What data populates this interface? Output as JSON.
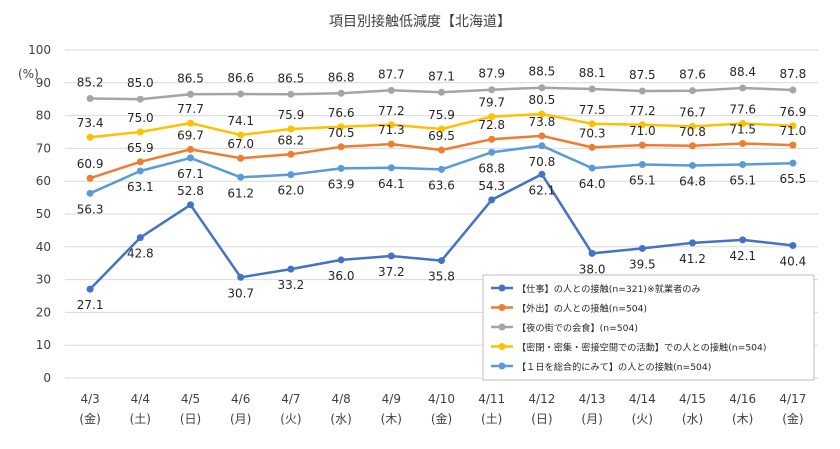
{
  "chart_data": {
    "type": "line",
    "title": "項目別接触低減度【北海道】",
    "ylabel": "(%)",
    "ylim": [
      0,
      100
    ],
    "yticks": [
      0,
      10,
      20,
      30,
      40,
      50,
      60,
      70,
      80,
      90,
      100
    ],
    "grid": true,
    "legend_position": "bottom-right",
    "categories": [
      "4/3",
      "4/4",
      "4/5",
      "4/6",
      "4/7",
      "4/8",
      "4/9",
      "4/10",
      "4/11",
      "4/12",
      "4/13",
      "4/14",
      "4/15",
      "4/16",
      "4/17"
    ],
    "weekdays": [
      "(金)",
      "(土)",
      "(日)",
      "(月)",
      "(火)",
      "(水)",
      "(木)",
      "(金)",
      "(土)",
      "(日)",
      "(月)",
      "(火)",
      "(水)",
      "(木)",
      "(金)"
    ],
    "series": [
      {
        "name": "【仕事】の人との接触(n=321)※就業者のみ",
        "color": "#4472c4",
        "values": [
          27.1,
          42.8,
          52.8,
          30.7,
          33.2,
          36.0,
          37.2,
          35.8,
          54.3,
          62.1,
          38.0,
          39.5,
          41.2,
          42.1,
          40.4
        ],
        "labels": [
          "27.1",
          "42.8",
          "52.8",
          "30.7",
          "33.2",
          "36.0",
          "37.2",
          "35.8",
          "54.3",
          "62.1",
          "38.0",
          "39.5",
          "41.2",
          "42.1",
          "40.4"
        ]
      },
      {
        "name": "【外出】の人との接触(n=504)",
        "color": "#ed7d31",
        "values": [
          60.9,
          65.9,
          69.7,
          67.0,
          68.2,
          70.5,
          71.3,
          69.5,
          72.8,
          73.8,
          70.3,
          71.0,
          70.8,
          71.5,
          71.0
        ],
        "labels": [
          "60.9",
          "65.9",
          "69.7",
          "67.0",
          "68.2",
          "70.5",
          "71.3",
          "69.5",
          "72.8",
          "73.8",
          "70.3",
          "71.0",
          "70.8",
          "71.5",
          "71.0"
        ]
      },
      {
        "name": "【夜の街での会食】(n=504)",
        "color": "#a5a5a5",
        "values": [
          85.2,
          85.0,
          86.5,
          86.6,
          86.5,
          86.8,
          87.7,
          87.1,
          87.9,
          88.5,
          88.1,
          87.5,
          87.6,
          88.4,
          87.8
        ],
        "labels": [
          "85.2",
          "85.0",
          "86.5",
          "86.6",
          "86.5",
          "86.8",
          "87.7",
          "87.1",
          "87.9",
          "88.5",
          "88.1",
          "87.5",
          "87.6",
          "88.4",
          "87.8"
        ]
      },
      {
        "name": "【密閉・密集・密接空間での活動】での人との接触(n=504)",
        "color": "#ffc000",
        "values": [
          73.4,
          75.0,
          77.7,
          74.1,
          75.9,
          76.6,
          77.2,
          75.9,
          79.7,
          80.5,
          77.5,
          77.2,
          76.7,
          77.6,
          76.9
        ],
        "labels": [
          "73.4",
          "75.0",
          "77.7",
          "74.1",
          "75.9",
          "76.6",
          "77.2",
          "75.9",
          "79.7",
          "80.5",
          "77.5",
          "77.2",
          "76.7",
          "77.6",
          "76.9"
        ]
      },
      {
        "name": "【１日を総合的にみて】の人との接触(n=504)",
        "color": "#5b9bd5",
        "values": [
          56.3,
          63.1,
          67.1,
          61.2,
          62.0,
          63.9,
          64.1,
          63.6,
          68.8,
          70.8,
          64.0,
          65.1,
          64.8,
          65.1,
          65.5
        ],
        "labels": [
          "56.3",
          "63.1",
          "67.1",
          "61.2",
          "62.0",
          "63.9",
          "64.1",
          "63.6",
          "68.8",
          "70.8",
          "64.0",
          "65.1",
          "64.8",
          "65.1",
          "65.5"
        ]
      }
    ]
  }
}
